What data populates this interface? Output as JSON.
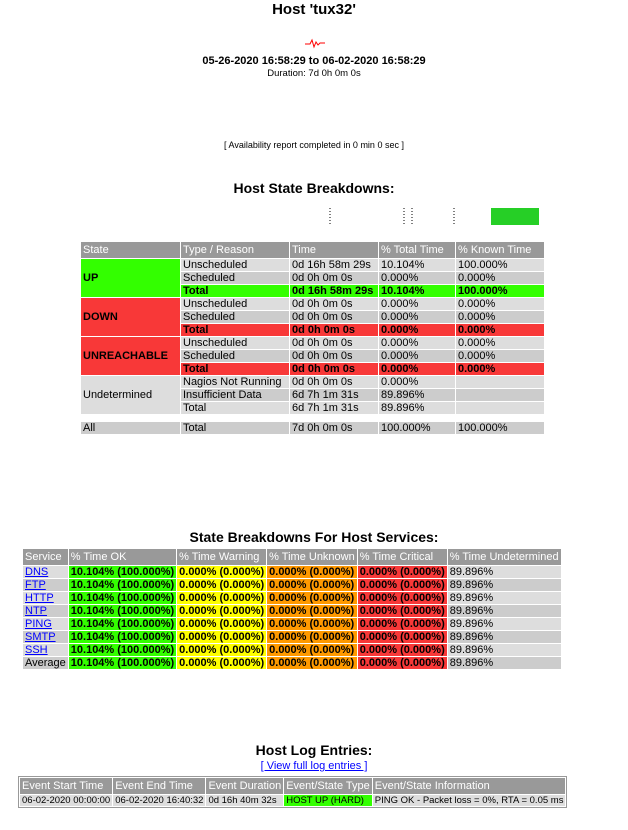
{
  "title": "Host 'tux32'",
  "report_range": "05-26-2020 16:58:29 to 06-02-2020 16:58:29",
  "duration": "Duration: 7d 0h 0m 0s",
  "availability_note": "[ Availability report completed in 0 min 0 sec ]",
  "host_state": {
    "heading": "Host State Breakdowns:",
    "columns": [
      "State",
      "Type / Reason",
      "Time",
      "% Total Time",
      "% Known Time"
    ],
    "up": {
      "label": "UP",
      "rows": [
        [
          "Unscheduled",
          "0d 16h 58m 29s",
          "10.104%",
          "100.000%"
        ],
        [
          "Scheduled",
          "0d 0h 0m 0s",
          "0.000%",
          "0.000%"
        ],
        [
          "Total",
          "0d 16h 58m 29s",
          "10.104%",
          "100.000%"
        ]
      ]
    },
    "down": {
      "label": "DOWN",
      "rows": [
        [
          "Unscheduled",
          "0d 0h 0m 0s",
          "0.000%",
          "0.000%"
        ],
        [
          "Scheduled",
          "0d 0h 0m 0s",
          "0.000%",
          "0.000%"
        ],
        [
          "Total",
          "0d 0h 0m 0s",
          "0.000%",
          "0.000%"
        ]
      ]
    },
    "unreachable": {
      "label": "UNREACHABLE",
      "rows": [
        [
          "Unscheduled",
          "0d 0h 0m 0s",
          "0.000%",
          "0.000%"
        ],
        [
          "Scheduled",
          "0d 0h 0m 0s",
          "0.000%",
          "0.000%"
        ],
        [
          "Total",
          "0d 0h 0m 0s",
          "0.000%",
          "0.000%"
        ]
      ]
    },
    "undetermined": {
      "label": "Undetermined",
      "rows": [
        [
          "Nagios Not Running",
          "0d 0h 0m 0s",
          "0.000%",
          ""
        ],
        [
          "Insufficient Data",
          "6d 7h 1m 31s",
          "89.896%",
          ""
        ],
        [
          "Total",
          "6d 7h 1m 31s",
          "89.896%",
          ""
        ]
      ]
    },
    "all": [
      "All",
      "Total",
      "7d 0h 0m 0s",
      "100.000%",
      "100.000%"
    ]
  },
  "services": {
    "heading": "State Breakdowns For Host Services:",
    "columns": [
      "Service",
      "% Time OK",
      "% Time Warning",
      "% Time Unknown",
      "% Time Critical",
      "% Time Undetermined"
    ],
    "rows": [
      [
        "DNS",
        "10.104% (100.000%)",
        "0.000% (0.000%)",
        "0.000% (0.000%)",
        "0.000% (0.000%)",
        "89.896%"
      ],
      [
        "FTP",
        "10.104% (100.000%)",
        "0.000% (0.000%)",
        "0.000% (0.000%)",
        "0.000% (0.000%)",
        "89.896%"
      ],
      [
        "HTTP",
        "10.104% (100.000%)",
        "0.000% (0.000%)",
        "0.000% (0.000%)",
        "0.000% (0.000%)",
        "89.896%"
      ],
      [
        "NTP",
        "10.104% (100.000%)",
        "0.000% (0.000%)",
        "0.000% (0.000%)",
        "0.000% (0.000%)",
        "89.896%"
      ],
      [
        "PING",
        "10.104% (100.000%)",
        "0.000% (0.000%)",
        "0.000% (0.000%)",
        "0.000% (0.000%)",
        "89.896%"
      ],
      [
        "SMTP",
        "10.104% (100.000%)",
        "0.000% (0.000%)",
        "0.000% (0.000%)",
        "0.000% (0.000%)",
        "89.896%"
      ],
      [
        "SSH",
        "10.104% (100.000%)",
        "0.000% (0.000%)",
        "0.000% (0.000%)",
        "0.000% (0.000%)",
        "89.896%"
      ]
    ],
    "average": [
      "Average",
      "10.104% (100.000%)",
      "0.000% (0.000%)",
      "0.000% (0.000%)",
      "0.000% (0.000%)",
      "89.896%"
    ]
  },
  "log": {
    "heading": "Host Log Entries:",
    "link": "[ View full log entries ]",
    "columns": [
      "Event Start Time",
      "Event End Time",
      "Event Duration",
      "Event/State Type",
      "Event/State Information"
    ],
    "rows": [
      [
        "06-02-2020 00:00:00",
        "06-02-2020 16:40:32",
        "0d 16h 40m 32s",
        "HOST UP (HARD)",
        "PING OK - Packet loss = 0%, RTA = 0.05 ms"
      ]
    ]
  },
  "colors": {
    "up": "#33ff00",
    "down": "#f83838",
    "warning": "#ffff00",
    "unknown": "#ff9900",
    "header": "#999999",
    "trend_bar": "#26cf26",
    "sparkline": "#ff0000"
  }
}
